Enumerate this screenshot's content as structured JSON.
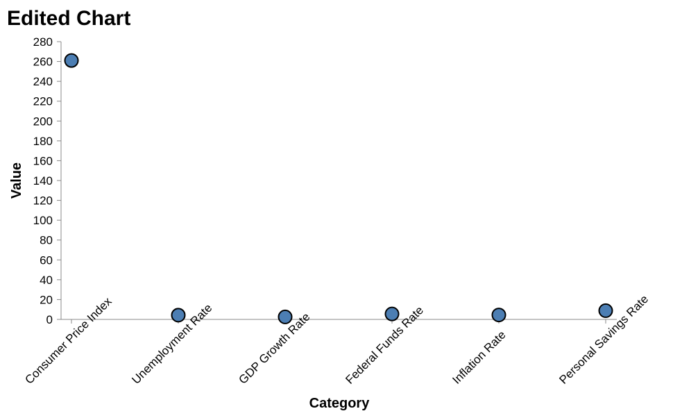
{
  "chart_data": {
    "type": "scatter",
    "title": "Edited Chart",
    "xlabel": "Category",
    "ylabel": "Value",
    "categories": [
      "Consumer Price Index",
      "Unemployment Rate",
      "GDP Growth Rate",
      "Federal Funds Rate",
      "Inflation Rate",
      "Personal Savings Rate"
    ],
    "values": [
      261,
      4.3,
      2.5,
      5.5,
      4.5,
      8.8
    ],
    "ylim": [
      0,
      280
    ],
    "yticks": [
      0,
      20,
      40,
      60,
      80,
      100,
      120,
      140,
      160,
      180,
      200,
      220,
      240,
      260,
      280
    ],
    "grid": false,
    "legend": "none",
    "colors": {
      "point": "#4C7EB3",
      "stroke": "#000000",
      "axis": "#888888"
    }
  }
}
